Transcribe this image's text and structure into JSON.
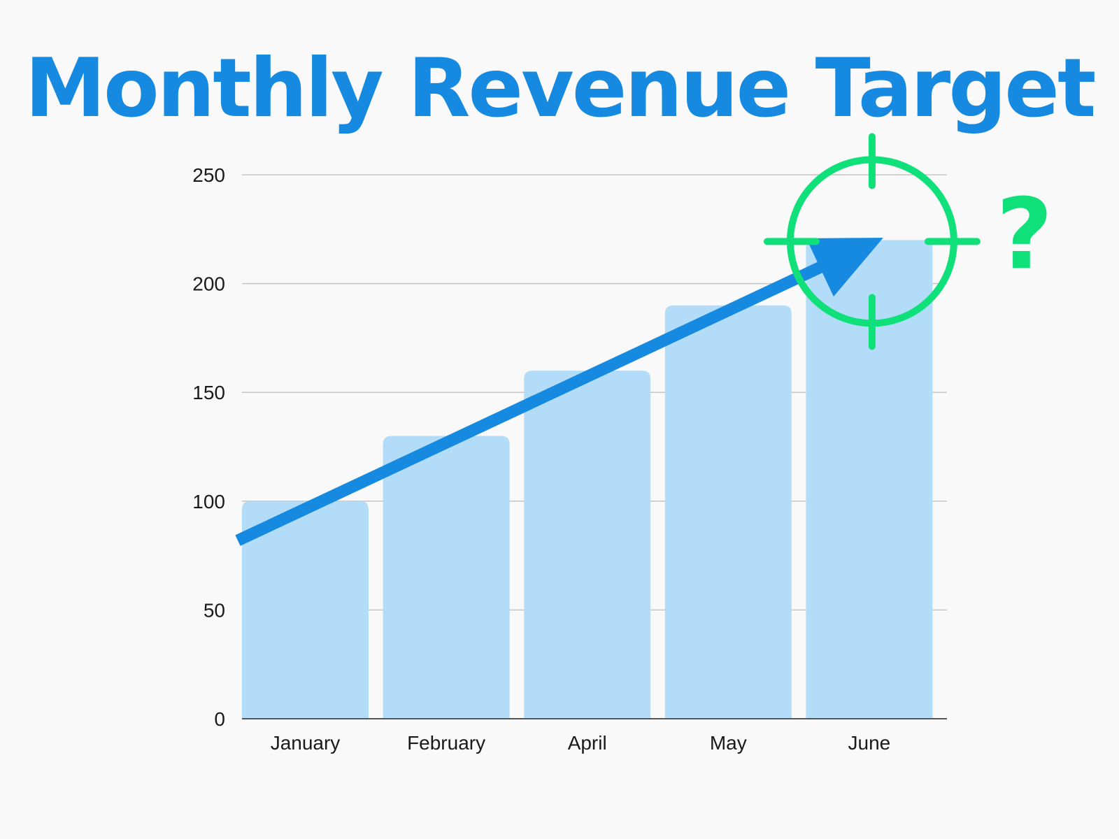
{
  "colors": {
    "title": "#1689e0",
    "bar": "#b3dcf9",
    "gridline": "#c4c4c4",
    "axis": "#555555",
    "trend_arrow": "#1689e0",
    "target_reticle": "#0fe07a",
    "question_mark": "#0fe07a"
  },
  "icons": {
    "target": "crosshair-target-icon",
    "question": "question-mark-icon",
    "trend": "trend-arrow-icon"
  },
  "question_text": "?",
  "chart_data": {
    "type": "bar",
    "title": "Monthly Revenue Target",
    "xlabel": "",
    "ylabel": "",
    "categories": [
      "January",
      "February",
      "April",
      "May",
      "June"
    ],
    "values": [
      100,
      130,
      160,
      190,
      220
    ],
    "ylim": [
      0,
      250
    ],
    "yticks": [
      "0",
      "50",
      "100",
      "150",
      "200",
      "250"
    ],
    "grid": true,
    "legend": "none",
    "annotations": [
      {
        "type": "trend-arrow",
        "from_value": 80,
        "to_category": "June",
        "to_value": 223
      },
      {
        "type": "target-reticle",
        "category": "June",
        "value": 220
      }
    ]
  }
}
